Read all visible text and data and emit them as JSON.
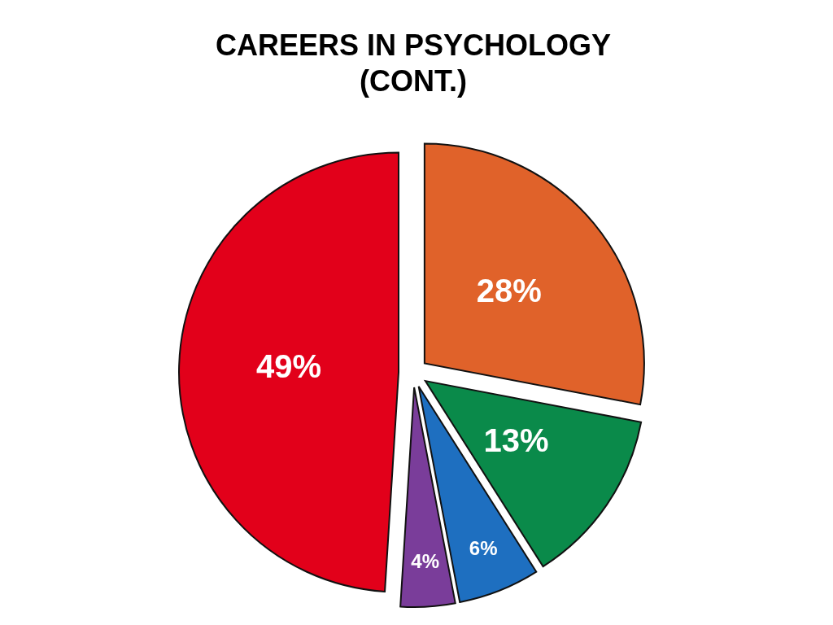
{
  "chart_data": {
    "type": "pie",
    "title": "CAREERS IN PSYCHOLOGY\n(CONT.)",
    "categories": [
      null,
      null,
      null,
      null,
      null
    ],
    "values": [
      28,
      13,
      6,
      4,
      49
    ],
    "colors": [
      "#e0622a",
      "#0a8a4a",
      "#1e6fc0",
      "#7a3d9a",
      "#e2001a"
    ],
    "value_labels": [
      "28%",
      "13%",
      "6%",
      "4%",
      "49%"
    ]
  }
}
